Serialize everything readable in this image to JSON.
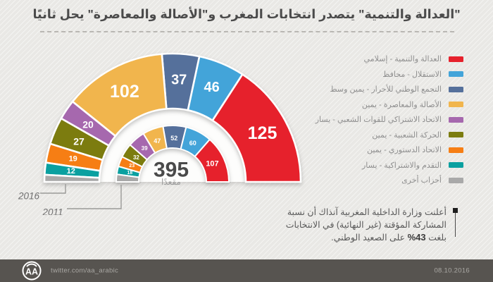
{
  "title": "\"العدالة والتنمية\" يتصدر انتخابات المغرب و\"الأصالة والمعاصرة\" يحل ثانيًا",
  "chart_data": {
    "type": "pie",
    "variant": "half-donut-parliament",
    "title": "",
    "total": 395,
    "total_label": "395",
    "total_sublabel": "مقعدًا",
    "legend_position": "right",
    "categories": [
      "العدالة والتنمية - إسلامي",
      "الاستقلال - محافظ",
      "التجمع الوطني للأحرار - يمين وسط",
      "الأصالة والمعاصرة -  يمين",
      "الاتحاد الاشتراكي للقوات الشعبي - يسار",
      "الحركة الشعبية - يمين",
      "الاتحاد الدستوري - يمين",
      "التقدم والاشتراكية - يسار",
      "أحزاب أخرى"
    ],
    "colors": [
      "#e6212c",
      "#43a4d9",
      "#55709b",
      "#f1b54d",
      "#a668ae",
      "#7c7c0f",
      "#f67e14",
      "#0aa0a0",
      "#a9a9a9"
    ],
    "series": [
      {
        "name": "2016",
        "ring": "outer",
        "values": [
          125,
          46,
          37,
          102,
          20,
          27,
          19,
          12,
          7
        ]
      },
      {
        "name": "2011",
        "ring": "inner",
        "values": [
          107,
          60,
          52,
          47,
          39,
          32,
          23,
          18,
          17
        ]
      }
    ],
    "hide_value_label_for_category": "أحزاب أخرى"
  },
  "note": {
    "line1": "أعلنت وزارة الداخلية المغربية آنذاك أن نسبة",
    "line2": "المشاركة المؤقتة (غير النهائية) في الانتخابات",
    "line3_before": "بلغت",
    "line3_pct": "%43",
    "line3_after": "على الصعيد الوطني."
  },
  "footer": {
    "logo_text": "AA",
    "handle": "twitter.com/aa_arabic",
    "date": "08.10.2016"
  }
}
